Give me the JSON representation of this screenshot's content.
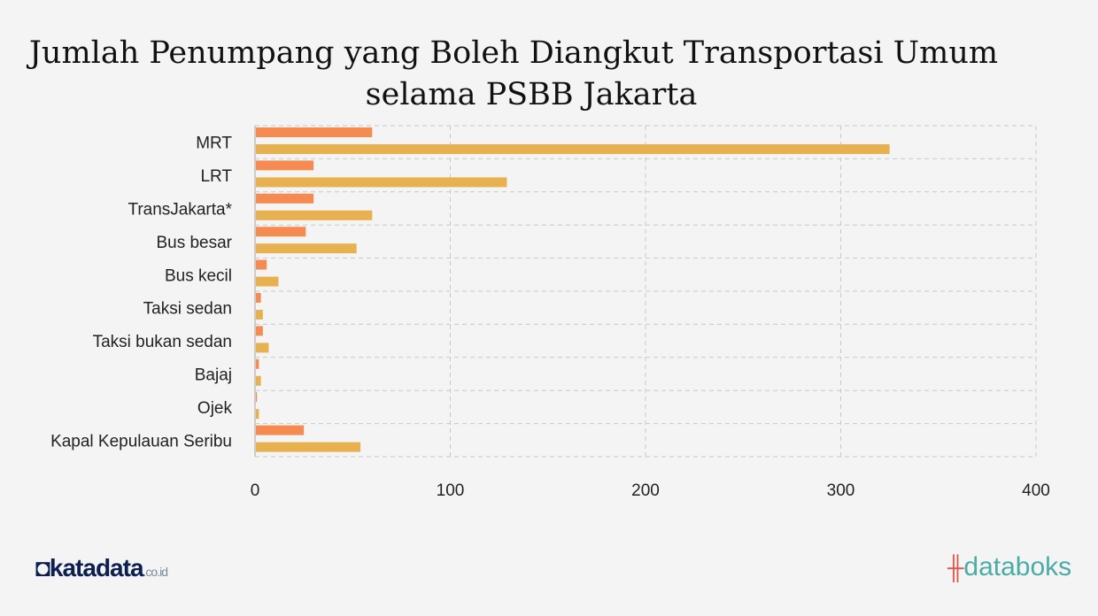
{
  "chart_data": {
    "type": "bar",
    "orientation": "horizontal",
    "title": "Jumlah Penumpang yang Boleh Diangkut Transportasi Umum selama PSBB Jakarta",
    "title_lines": [
      "Jumlah Penumpang yang Boleh Diangkut Transportasi Umum",
      "selama PSBB Jakarta"
    ],
    "categories": [
      "MRT",
      "LRT",
      "TransJakarta*",
      "Bus besar",
      "Bus kecil",
      "Taksi sedan",
      "Taksi bukan sedan",
      "Bajaj",
      "Ojek",
      "Kapal Kepulauan Seribu"
    ],
    "series": [
      {
        "values": [
          60,
          30,
          30,
          26,
          6,
          3,
          4,
          2,
          1,
          25
        ],
        "color": "#f58b50"
      },
      {
        "values": [
          325,
          129,
          60,
          52,
          12,
          4,
          7,
          3,
          2,
          54
        ],
        "color": "#e8b14f"
      }
    ],
    "xlim": [
      0,
      400
    ],
    "xticks": [
      "0",
      "100",
      "200",
      "300",
      "400"
    ],
    "grid": true,
    "legend": "none"
  },
  "footer": {
    "left_logo": "katadata.co.id",
    "right_logo": "databoks"
  }
}
